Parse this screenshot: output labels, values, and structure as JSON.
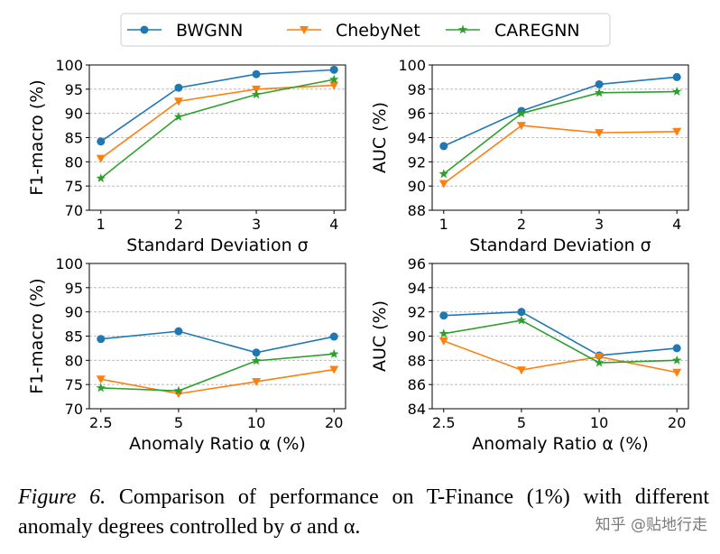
{
  "legend": [
    {
      "name": "BWGNN",
      "color": "#1f77b4",
      "marker": "circle"
    },
    {
      "name": "ChebyNet",
      "color": "#ff7f0e",
      "marker": "triangle-down"
    },
    {
      "name": "CAREGNN",
      "color": "#2ca02c",
      "marker": "star"
    }
  ],
  "chart_data": [
    {
      "type": "line",
      "xlabel": "Standard Deviation σ",
      "ylabel": "F1-macro (%)",
      "categories": [
        "1",
        "2",
        "3",
        "4"
      ],
      "ylim": [
        70,
        100
      ],
      "yticks": [
        70,
        75,
        80,
        85,
        90,
        95,
        100
      ],
      "grid": "horizontal dashed",
      "series": [
        {
          "name": "BWGNN",
          "values": [
            84.2,
            95.3,
            98.1,
            99.0
          ]
        },
        {
          "name": "ChebyNet",
          "values": [
            80.7,
            92.5,
            95.0,
            95.8
          ]
        },
        {
          "name": "CAREGNN",
          "values": [
            76.6,
            89.3,
            93.9,
            97.0
          ]
        }
      ]
    },
    {
      "type": "line",
      "xlabel": "Standard Deviation σ",
      "ylabel": "AUC (%)",
      "categories": [
        "1",
        "2",
        "3",
        "4"
      ],
      "ylim": [
        88,
        100
      ],
      "yticks": [
        88,
        90,
        92,
        94,
        96,
        98,
        100
      ],
      "grid": "horizontal dashed",
      "series": [
        {
          "name": "BWGNN",
          "values": [
            93.3,
            96.2,
            98.4,
            99.0
          ]
        },
        {
          "name": "ChebyNet",
          "values": [
            90.2,
            95.0,
            94.4,
            94.5
          ]
        },
        {
          "name": "CAREGNN",
          "values": [
            91.0,
            96.0,
            97.7,
            97.8
          ]
        }
      ]
    },
    {
      "type": "line",
      "xlabel": "Anomaly Ratio α (%)",
      "ylabel": "F1-macro (%)",
      "categories": [
        "2.5",
        "5",
        "10",
        "20"
      ],
      "ylim": [
        70,
        100
      ],
      "yticks": [
        70,
        75,
        80,
        85,
        90,
        95,
        100
      ],
      "grid": "horizontal dashed",
      "series": [
        {
          "name": "BWGNN",
          "values": [
            84.4,
            86.0,
            81.6,
            84.9
          ]
        },
        {
          "name": "ChebyNet",
          "values": [
            76.1,
            73.1,
            75.6,
            78.1
          ]
        },
        {
          "name": "CAREGNN",
          "values": [
            74.3,
            73.7,
            79.9,
            81.3
          ]
        }
      ]
    },
    {
      "type": "line",
      "xlabel": "Anomaly Ratio α (%)",
      "ylabel": "AUC (%)",
      "categories": [
        "2.5",
        "5",
        "10",
        "20"
      ],
      "ylim": [
        84,
        96
      ],
      "yticks": [
        84,
        86,
        88,
        90,
        92,
        94,
        96
      ],
      "grid": "horizontal dashed",
      "series": [
        {
          "name": "BWGNN",
          "values": [
            91.7,
            92.0,
            88.4,
            89.0
          ]
        },
        {
          "name": "ChebyNet",
          "values": [
            89.6,
            87.2,
            88.3,
            87.0
          ]
        },
        {
          "name": "CAREGNN",
          "values": [
            90.2,
            91.3,
            87.8,
            88.0
          ]
        }
      ]
    }
  ],
  "caption": {
    "label": "Figure 6.",
    "text": "Comparison of performance on T-Finance (1%) with different anomaly degrees controlled by σ and α."
  },
  "watermark": "知乎 @贴地行走"
}
